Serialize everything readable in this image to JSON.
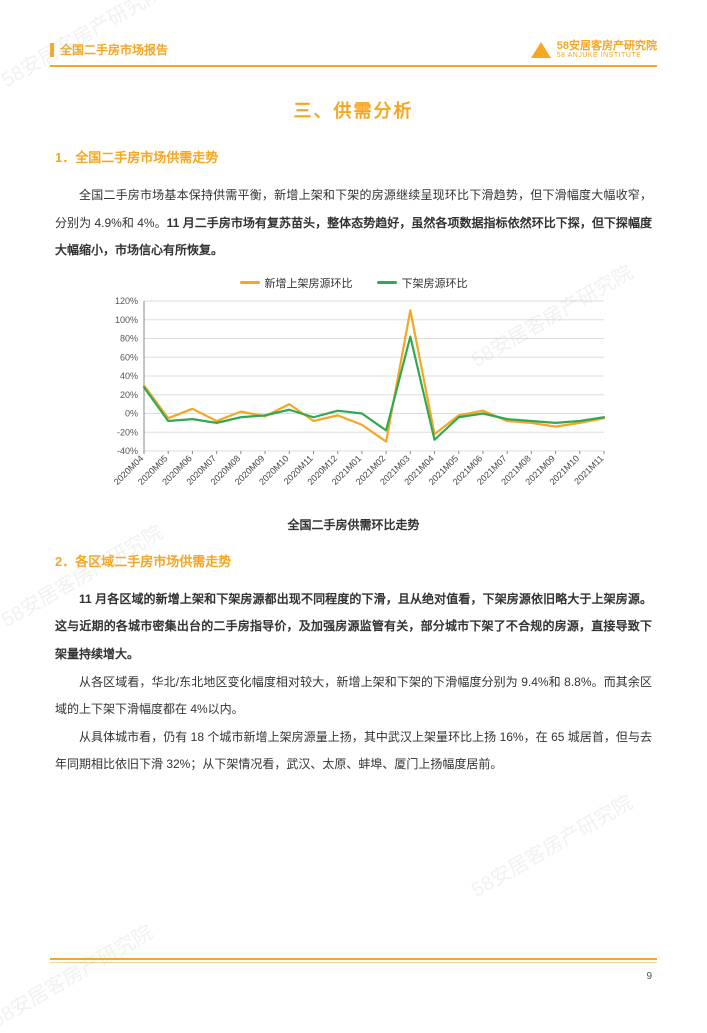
{
  "watermark_text": "58安居客房产研究院",
  "header": {
    "title": "全国二手房市场报告",
    "brand_main": "58安居客房产研究院",
    "brand_sub": "58 ANJUKE INSTITUTE"
  },
  "section_title": "三、供需分析",
  "sub1": {
    "heading": "1．全国二手房市场供需走势",
    "para_plain": "全国二手房市场基本保持供需平衡，新增上架和下架的房源继续呈现环比下滑趋势，但下滑幅度大幅收窄，分别为 4.9%和 4%。",
    "para_bold": "11 月二手房市场有复苏苗头，整体态势趋好，虽然各项数据指标依然环比下探，但下探幅度大幅缩小，市场信心有所恢复。"
  },
  "chart": {
    "type": "line",
    "legend": [
      {
        "label": "新增上架房源环比",
        "color": "#f5a623"
      },
      {
        "label": "下架房源环比",
        "color": "#33a852"
      }
    ],
    "x_labels": [
      "2020M04",
      "2020M05",
      "2020M06",
      "2020M07",
      "2020M08",
      "2020M09",
      "2020M10",
      "2020M11",
      "2020M12",
      "2021M01",
      "2021M02",
      "2021M03",
      "2021M04",
      "2021M05",
      "2021M06",
      "2021M07",
      "2021M08",
      "2021M09",
      "2021M10",
      "2021M11"
    ],
    "series": {
      "新增上架房源环比": [
        30,
        -5,
        5,
        -8,
        2,
        -3,
        10,
        -8,
        -2,
        -12,
        -30,
        110,
        -22,
        -2,
        3,
        -8,
        -10,
        -14,
        -10,
        -5
      ],
      "下架房源环比": [
        28,
        -8,
        -6,
        -10,
        -4,
        -2,
        4,
        -4,
        3,
        0,
        -18,
        82,
        -28,
        -4,
        0,
        -6,
        -8,
        -10,
        -8,
        -4
      ]
    },
    "ylim": [
      -40,
      120
    ],
    "yticks": [
      -40,
      -20,
      0,
      20,
      40,
      60,
      80,
      100,
      120
    ],
    "ytick_labels": [
      "-40%",
      "-20%",
      "0%",
      "20%",
      "40%",
      "60%",
      "80%",
      "100%",
      "120%"
    ],
    "grid_color": "#dddddd",
    "axis_color": "#888888",
    "line_width": 2.2,
    "label_fontsize": 9,
    "tick_fontsize": 9,
    "background_color": "#ffffff",
    "caption": "全国二手房供需环比走势"
  },
  "sub2": {
    "heading": "2．各区域二手房市场供需走势",
    "para_bold": "11 月各区域的新增上架和下架房源都出现不同程度的下滑，且从绝对值看，下架房源依旧略大于上架房源。这与近期的各城市密集出台的二手房指导价，及加强房源监管有关，部分城市下架了不合规的房源，直接导致下架量持续增大。",
    "para2": "从各区域看，华北/东北地区变化幅度相对较大，新增上架和下架的下滑幅度分别为 9.4%和 8.8%。而其余区域的上下架下滑幅度都在 4%以内。",
    "para3": "从具体城市看，仍有 18 个城市新增上架房源量上扬，其中武汉上架量环比上扬 16%，在 65 城居首，但与去年同期相比依旧下滑 32%；从下架情况看，武汉、太原、蚌埠、厦门上扬幅度居前。"
  },
  "page_number": "9",
  "colors": {
    "accent": "#f5a623",
    "text": "#333333",
    "series1": "#f5a623",
    "series2": "#33a852"
  }
}
